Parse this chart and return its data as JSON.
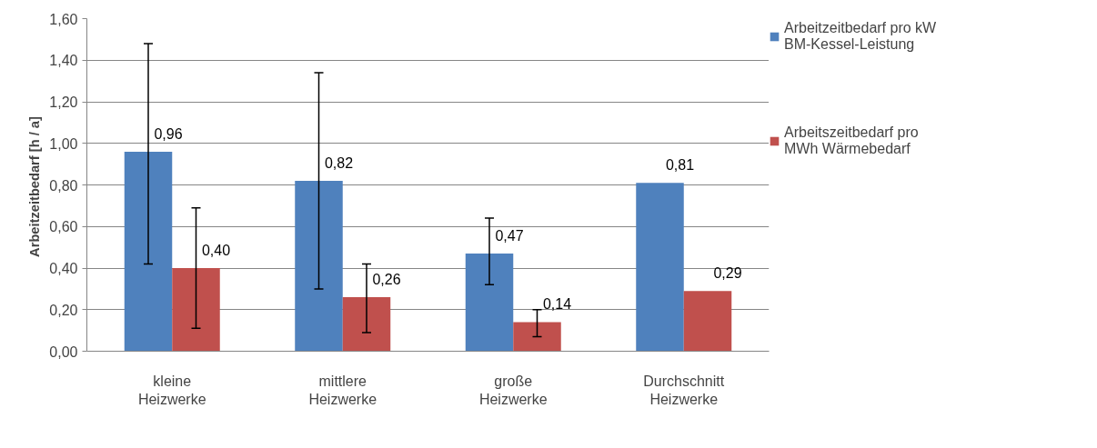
{
  "chart_data": {
    "type": "bar",
    "ylabel": "Arbeitzeitbedarf  [h / a]",
    "categories": [
      "kleine Heizwerke",
      "mittlere Heizwerke",
      "große Heizwerke",
      "Durchschnitt Heizwerke"
    ],
    "series": [
      {
        "name": "Arbeitzeitbedarf pro kW BM-Kessel-Leistung",
        "color": "#4f81bd",
        "values": [
          0.96,
          0.82,
          0.47,
          0.81
        ],
        "errors": [
          [
            0.42,
            1.48
          ],
          [
            0.3,
            1.34
          ],
          [
            0.32,
            0.64
          ],
          null
        ],
        "value_labels": [
          "0,96",
          "0,82",
          "0,47",
          "0,81"
        ]
      },
      {
        "name": "Arbeitszeitbedarf pro MWh Wärmebedarf",
        "color": "#c0504d",
        "values": [
          0.4,
          0.26,
          0.14,
          0.29
        ],
        "errors": [
          [
            0.11,
            0.69
          ],
          [
            0.09,
            0.42
          ],
          [
            0.07,
            0.2
          ],
          null
        ],
        "value_labels": [
          "0,40",
          "0,26",
          "0,14",
          "0,29"
        ]
      }
    ],
    "ylim": [
      0,
      1.6
    ],
    "yticks": [
      {
        "value": 0,
        "label": "0,00"
      },
      {
        "value": 0.2,
        "label": "0,20"
      },
      {
        "value": 0.4,
        "label": "0,40"
      },
      {
        "value": 0.6,
        "label": "0,60"
      },
      {
        "value": 0.8,
        "label": "0,80"
      },
      {
        "value": 1.0,
        "label": "1,00"
      },
      {
        "value": 1.2,
        "label": "1,20"
      },
      {
        "value": 1.4,
        "label": "1,40"
      },
      {
        "value": 1.6,
        "label": "1,60"
      }
    ],
    "grid": "y",
    "legend": "right"
  }
}
